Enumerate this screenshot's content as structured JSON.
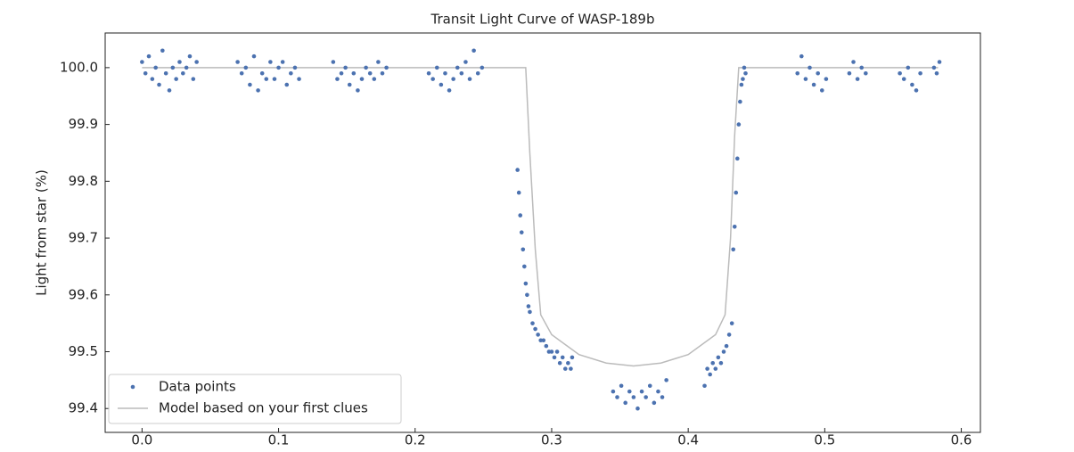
{
  "chart_data": {
    "type": "scatter",
    "title": "Transit Light Curve of WASP-189b",
    "ylabel": "Light from star (%)",
    "xlim": [
      -0.027,
      0.614
    ],
    "ylim": [
      99.358,
      100.061
    ],
    "xticks": [
      {
        "value": 0,
        "label": "0.0"
      },
      0.1,
      0.2,
      0.3,
      0.4,
      0.5,
      0.6
    ],
    "yticks": [
      99.4,
      99.5,
      99.6,
      99.7,
      99.8,
      99.9,
      {
        "value": 100,
        "label": "100.0"
      }
    ],
    "legend": "lower left",
    "series": [
      {
        "name": "Data points",
        "type": "scatter",
        "color": "#4c72b0",
        "x": [
          0.0,
          0.0025,
          0.005,
          0.0075,
          0.01,
          0.0125,
          0.015,
          0.0175,
          0.02,
          0.0225,
          0.025,
          0.0275,
          0.03,
          0.0325,
          0.035,
          0.0375,
          0.04,
          0.07,
          0.073,
          0.076,
          0.079,
          0.082,
          0.085,
          0.088,
          0.091,
          0.094,
          0.097,
          0.1,
          0.103,
          0.106,
          0.109,
          0.112,
          0.115,
          0.14,
          0.143,
          0.146,
          0.149,
          0.152,
          0.155,
          0.158,
          0.161,
          0.164,
          0.167,
          0.17,
          0.173,
          0.176,
          0.179,
          0.21,
          0.213,
          0.216,
          0.219,
          0.222,
          0.225,
          0.228,
          0.231,
          0.234,
          0.237,
          0.24,
          0.243,
          0.246,
          0.249,
          0.275,
          0.276,
          0.277,
          0.278,
          0.279,
          0.28,
          0.281,
          0.282,
          0.283,
          0.284,
          0.286,
          0.288,
          0.29,
          0.292,
          0.294,
          0.296,
          0.298,
          0.3,
          0.302,
          0.304,
          0.306,
          0.308,
          0.31,
          0.312,
          0.314,
          0.315,
          0.345,
          0.348,
          0.351,
          0.354,
          0.357,
          0.36,
          0.363,
          0.366,
          0.369,
          0.372,
          0.375,
          0.378,
          0.381,
          0.384,
          0.412,
          0.414,
          0.416,
          0.418,
          0.42,
          0.422,
          0.424,
          0.426,
          0.428,
          0.43,
          0.432,
          0.433,
          0.434,
          0.435,
          0.436,
          0.437,
          0.438,
          0.439,
          0.44,
          0.441,
          0.442,
          0.48,
          0.483,
          0.486,
          0.489,
          0.492,
          0.495,
          0.498,
          0.501,
          0.518,
          0.521,
          0.524,
          0.527,
          0.53,
          0.555,
          0.558,
          0.561,
          0.564,
          0.567,
          0.57,
          0.58,
          0.582,
          0.584
        ],
        "values": [
          100.01,
          99.99,
          100.02,
          99.98,
          100.0,
          99.97,
          100.03,
          99.99,
          99.96,
          100.0,
          99.98,
          100.01,
          99.99,
          100.0,
          100.02,
          99.98,
          100.01,
          100.01,
          99.99,
          100.0,
          99.97,
          100.02,
          99.96,
          99.99,
          99.98,
          100.01,
          99.98,
          100.0,
          100.01,
          99.97,
          99.99,
          100.0,
          99.98,
          100.01,
          99.98,
          99.99,
          100.0,
          99.97,
          99.99,
          99.96,
          99.98,
          100.0,
          99.99,
          99.98,
          100.01,
          99.99,
          100.0,
          99.99,
          99.98,
          100.0,
          99.97,
          99.99,
          99.96,
          99.98,
          100.0,
          99.99,
          100.01,
          99.98,
          100.03,
          99.99,
          100.0,
          99.82,
          99.78,
          99.74,
          99.71,
          99.68,
          99.65,
          99.62,
          99.6,
          99.58,
          99.57,
          99.55,
          99.54,
          99.53,
          99.52,
          99.52,
          99.51,
          99.5,
          99.5,
          99.49,
          99.5,
          99.48,
          99.49,
          99.47,
          99.48,
          99.47,
          99.49,
          99.43,
          99.42,
          99.44,
          99.41,
          99.43,
          99.42,
          99.4,
          99.43,
          99.42,
          99.44,
          99.41,
          99.43,
          99.42,
          99.45,
          99.44,
          99.47,
          99.46,
          99.48,
          99.47,
          99.49,
          99.48,
          99.5,
          99.51,
          99.53,
          99.55,
          99.68,
          99.72,
          99.78,
          99.84,
          99.9,
          99.94,
          99.97,
          99.98,
          100.0,
          99.99,
          99.99,
          100.02,
          99.98,
          100.0,
          99.97,
          99.99,
          99.96,
          99.98,
          99.99,
          100.01,
          99.98,
          100.0,
          99.99,
          99.99,
          99.98,
          100.0,
          99.97,
          99.96,
          99.99,
          100.0,
          99.99,
          100.01
        ]
      },
      {
        "name": "Model based on your first clues",
        "type": "line",
        "color": "#bbbbbb",
        "x": [
          0,
          0.281,
          0.284,
          0.288,
          0.292,
          0.3,
          0.32,
          0.34,
          0.36,
          0.38,
          0.4,
          0.42,
          0.427,
          0.431,
          0.434,
          0.437,
          0.583
        ],
        "values": [
          100,
          100,
          99.85,
          99.68,
          99.565,
          99.53,
          99.495,
          99.48,
          99.475,
          99.48,
          99.495,
          99.53,
          99.565,
          99.7,
          99.88,
          100,
          100
        ]
      }
    ]
  }
}
